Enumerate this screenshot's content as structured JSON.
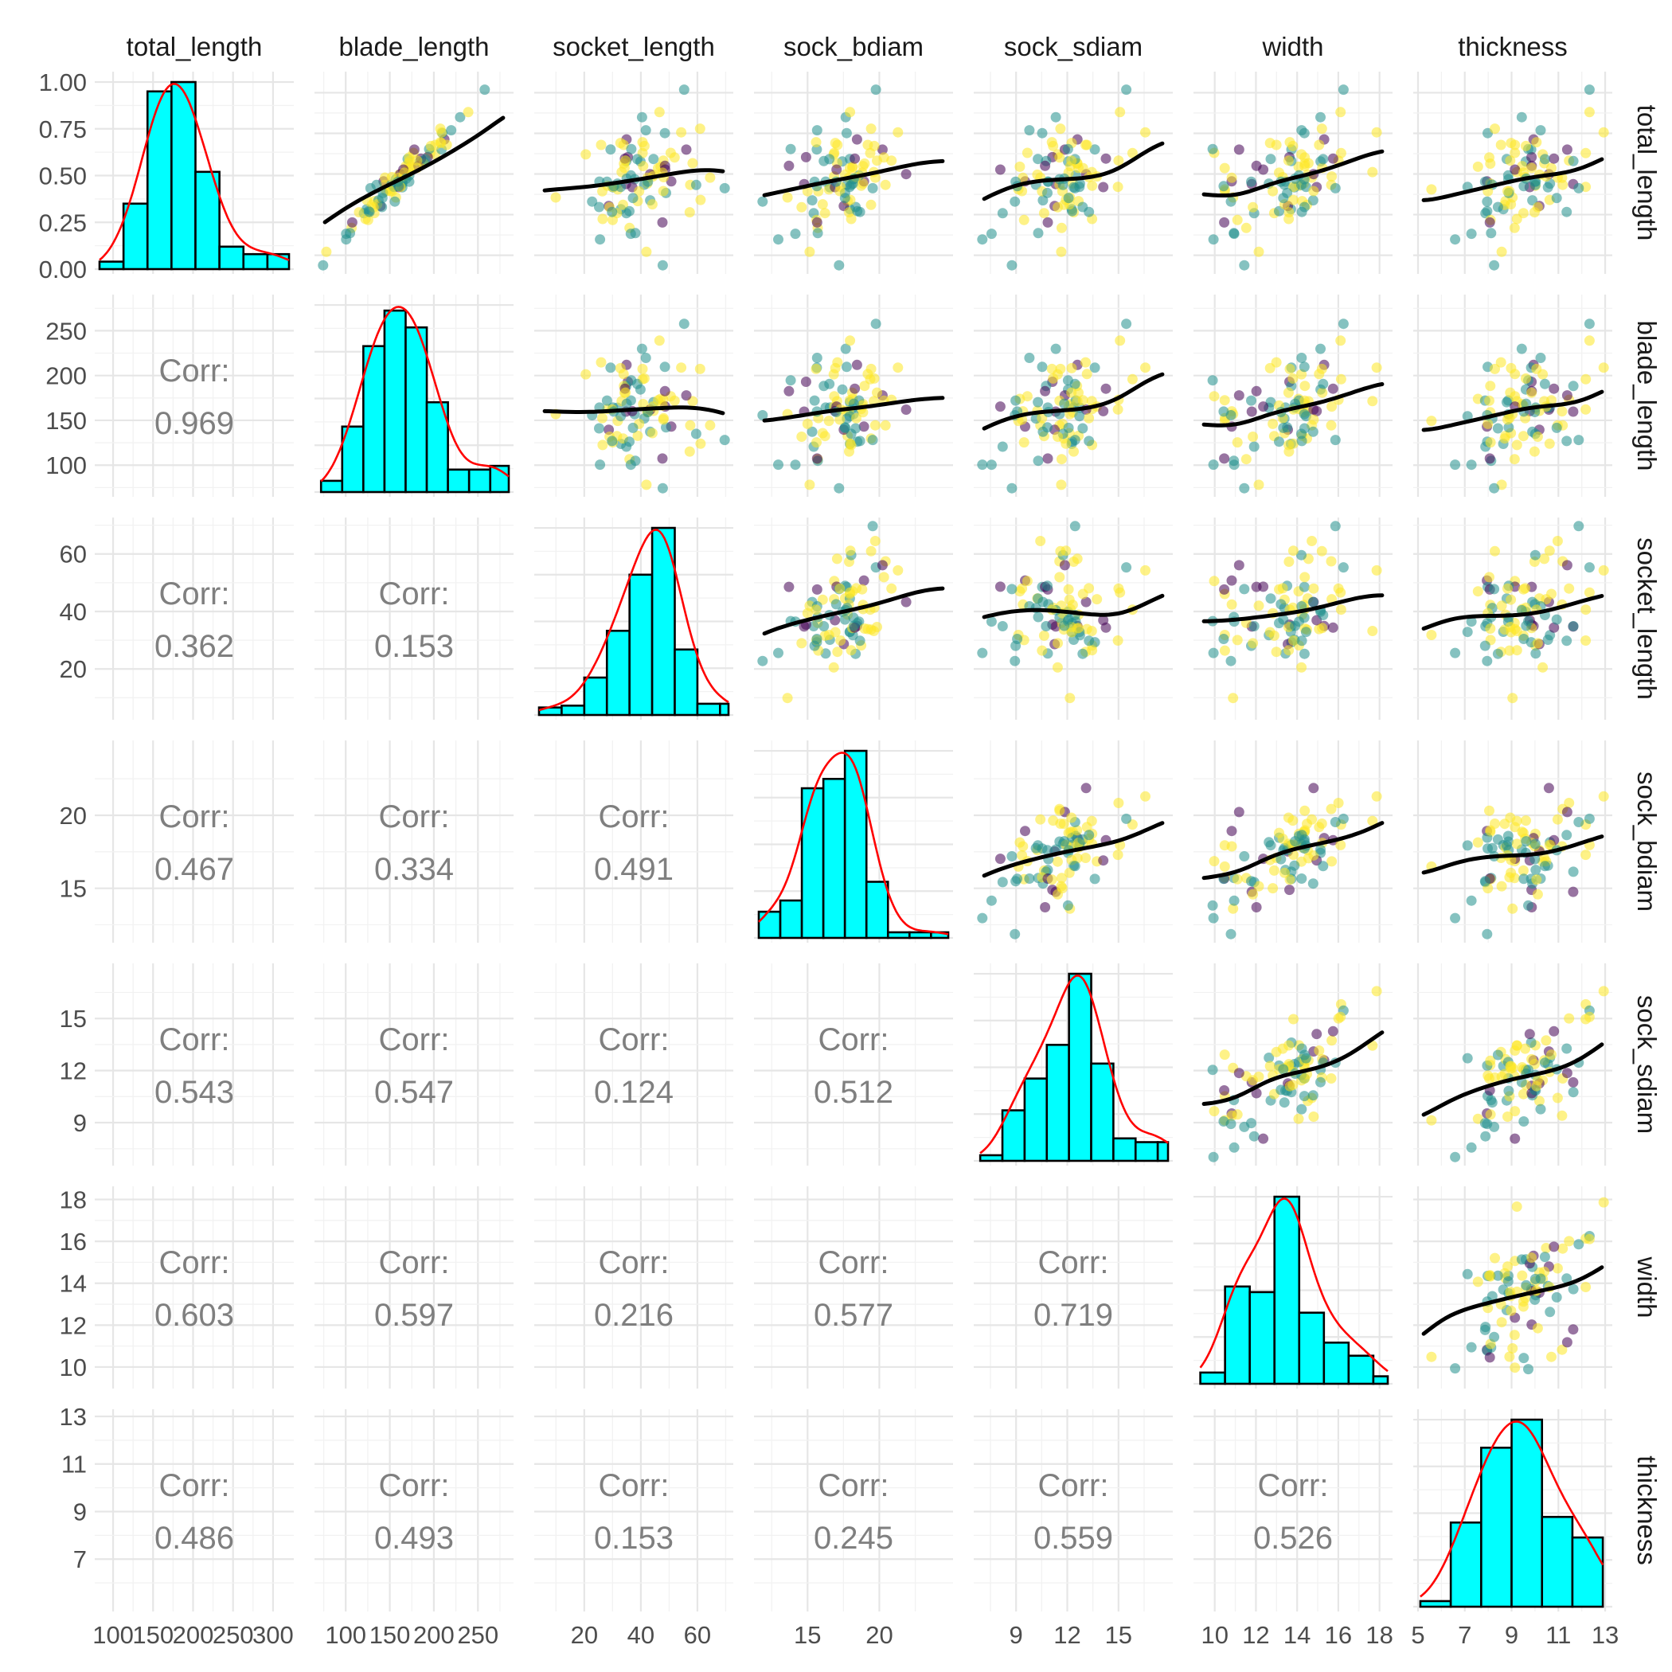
{
  "chart_data": {
    "type": "scatter_matrix",
    "title": "",
    "variables": [
      "total_length",
      "blade_length",
      "socket_length",
      "sock_bdiam",
      "sock_sdiam",
      "width",
      "thickness"
    ],
    "corr_label": "Corr:",
    "correlations": [
      {
        "row": "blade_length",
        "col": "total_length",
        "value": "0.969"
      },
      {
        "row": "socket_length",
        "col": "total_length",
        "value": "0.362"
      },
      {
        "row": "socket_length",
        "col": "blade_length",
        "value": "0.153"
      },
      {
        "row": "sock_bdiam",
        "col": "total_length",
        "value": "0.467"
      },
      {
        "row": "sock_bdiam",
        "col": "blade_length",
        "value": "0.334"
      },
      {
        "row": "sock_bdiam",
        "col": "socket_length",
        "value": "0.491"
      },
      {
        "row": "sock_sdiam",
        "col": "total_length",
        "value": "0.543"
      },
      {
        "row": "sock_sdiam",
        "col": "blade_length",
        "value": "0.547"
      },
      {
        "row": "sock_sdiam",
        "col": "socket_length",
        "value": "0.124"
      },
      {
        "row": "sock_sdiam",
        "col": "sock_bdiam",
        "value": "0.512"
      },
      {
        "row": "width",
        "col": "total_length",
        "value": "0.603"
      },
      {
        "row": "width",
        "col": "blade_length",
        "value": "0.597"
      },
      {
        "row": "width",
        "col": "socket_length",
        "value": "0.216"
      },
      {
        "row": "width",
        "col": "sock_bdiam",
        "value": "0.577"
      },
      {
        "row": "width",
        "col": "sock_sdiam",
        "value": "0.719"
      },
      {
        "row": "thickness",
        "col": "total_length",
        "value": "0.486"
      },
      {
        "row": "thickness",
        "col": "blade_length",
        "value": "0.493"
      },
      {
        "row": "thickness",
        "col": "socket_length",
        "value": "0.153"
      },
      {
        "row": "thickness",
        "col": "sock_bdiam",
        "value": "0.245"
      },
      {
        "row": "thickness",
        "col": "sock_sdiam",
        "value": "0.559"
      },
      {
        "row": "thickness",
        "col": "width",
        "value": "0.526"
      }
    ],
    "ranges": {
      "total_length": [
        83,
        320
      ],
      "blade_length": [
        70,
        285
      ],
      "socket_length": [
        4,
        71
      ],
      "sock_bdiam": [
        11.6,
        24.8
      ],
      "sock_sdiam": [
        6.8,
        17.9
      ],
      "width": [
        9.2,
        18.4
      ],
      "thickness": [
        5.0,
        13.1
      ]
    },
    "diag_y_axis": {
      "ticks": [
        0,
        0.25,
        0.5,
        0.75,
        1.0
      ],
      "labels": [
        "0.00",
        "0.25",
        "0.50",
        "0.75",
        "1.00"
      ],
      "range": [
        0,
        1.03
      ]
    },
    "x_axis_ticks": {
      "total_length": {
        "values": [
          100,
          150,
          200,
          250,
          300
        ],
        "labels": [
          "100",
          "150",
          "200",
          "250",
          "300"
        ]
      },
      "blade_length": {
        "values": [
          100,
          150,
          200,
          250
        ],
        "labels": [
          "100",
          "150",
          "200",
          "250"
        ]
      },
      "socket_length": {
        "values": [
          20,
          40,
          60
        ],
        "labels": [
          "20",
          "40",
          "60"
        ]
      },
      "sock_bdiam": {
        "values": [
          15,
          20
        ],
        "labels": [
          "15",
          "20"
        ]
      },
      "sock_sdiam": {
        "values": [
          9,
          12,
          15
        ],
        "labels": [
          "9",
          "12",
          "15"
        ]
      },
      "width": {
        "values": [
          10,
          12,
          14,
          16,
          18
        ],
        "labels": [
          "10",
          "12",
          "14",
          "16",
          "18"
        ]
      },
      "thickness": {
        "values": [
          5,
          7,
          9,
          11,
          13
        ],
        "labels": [
          "5",
          "7",
          "9",
          "11",
          "13"
        ]
      }
    },
    "y_axis_ticks": {
      "blade_length": {
        "values": [
          100,
          150,
          200,
          250
        ],
        "labels": [
          "100",
          "150",
          "200",
          "250"
        ]
      },
      "socket_length": {
        "values": [
          20,
          40,
          60
        ],
        "labels": [
          "20",
          "40",
          "60"
        ]
      },
      "sock_bdiam": {
        "values": [
          15,
          20
        ],
        "labels": [
          "15",
          "20"
        ]
      },
      "sock_sdiam": {
        "values": [
          9,
          12,
          15
        ],
        "labels": [
          "9",
          "12",
          "15"
        ]
      },
      "width": {
        "values": [
          10,
          12,
          14,
          16,
          18
        ],
        "labels": [
          "10",
          "12",
          "14",
          "16",
          "18"
        ]
      },
      "thickness": {
        "values": [
          7,
          9,
          11,
          13
        ],
        "labels": [
          "7",
          "9",
          "11",
          "13"
        ]
      }
    },
    "histograms": [
      {
        "var": "total_length",
        "breaks": [
          83,
          113,
          143,
          173,
          203,
          233,
          263,
          293,
          320
        ],
        "heights": [
          0.04,
          0.35,
          0.95,
          1.0,
          0.52,
          0.12,
          0.08,
          0.08
        ]
      },
      {
        "var": "blade_length",
        "breaks": [
          72,
          96,
          120,
          144,
          168,
          192,
          216,
          240,
          264,
          285
        ],
        "heights": [
          0.06,
          0.35,
          0.78,
          0.97,
          0.88,
          0.48,
          0.12,
          0.12,
          0.14
        ]
      },
      {
        "var": "socket_length",
        "breaks": [
          4,
          12,
          20,
          28,
          36,
          44,
          52,
          60,
          68,
          71
        ],
        "heights": [
          0.04,
          0.05,
          0.2,
          0.45,
          0.75,
          1.0,
          0.35,
          0.06,
          0.06
        ]
      },
      {
        "var": "sock_bdiam",
        "breaks": [
          11.6,
          13.1,
          14.6,
          16.1,
          17.6,
          19.1,
          20.6,
          22.1,
          23.6,
          24.8
        ],
        "heights": [
          0.14,
          0.2,
          0.8,
          0.85,
          1.0,
          0.3,
          0.03,
          0.03,
          0.03
        ]
      },
      {
        "var": "sock_sdiam",
        "breaks": [
          6.9,
          8.2,
          9.5,
          10.8,
          12.1,
          13.4,
          14.7,
          16.0,
          17.3,
          17.9
        ],
        "heights": [
          0.03,
          0.27,
          0.44,
          0.62,
          1.0,
          0.52,
          0.12,
          0.1,
          0.1
        ]
      },
      {
        "var": "width",
        "breaks": [
          9.3,
          10.5,
          11.7,
          12.9,
          14.1,
          15.3,
          16.5,
          17.7,
          18.4
        ],
        "heights": [
          0.06,
          0.52,
          0.49,
          1.0,
          0.38,
          0.22,
          0.15,
          0.04
        ]
      },
      {
        "var": "thickness",
        "breaks": [
          5.1,
          6.4,
          7.7,
          9.0,
          10.3,
          11.6,
          12.9
        ],
        "heights": [
          0.03,
          0.45,
          0.85,
          1.0,
          0.48,
          0.37
        ]
      }
    ],
    "series_colors": [
      "#440154",
      "#21908c",
      "#fde725"
    ],
    "hist_fill": "#00ffff",
    "density_color": "#ff0000",
    "smooth_color": "#000000",
    "grid": true
  }
}
